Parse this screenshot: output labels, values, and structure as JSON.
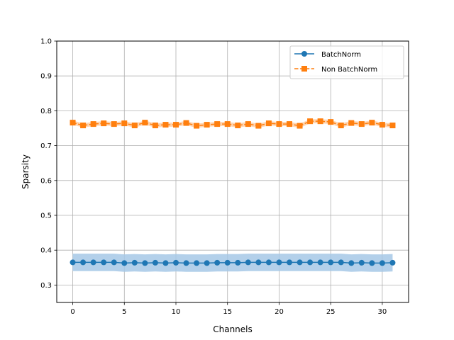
{
  "chart_data": {
    "type": "line",
    "title": "",
    "xlabel": "Channels",
    "ylabel": "Sparsity",
    "xlim": [
      -1.55,
      32.55
    ],
    "ylim": [
      0.25,
      1.0
    ],
    "x_ticks": [
      0,
      5,
      10,
      15,
      20,
      25,
      30
    ],
    "x_tick_labels": [
      "0",
      "5",
      "10",
      "15",
      "20",
      "25",
      "30"
    ],
    "y_ticks": [
      0.3,
      0.4,
      0.5,
      0.6,
      0.7,
      0.8,
      0.9,
      1.0
    ],
    "y_tick_labels": [
      "0.3",
      "0.4",
      "0.5",
      "0.6",
      "0.7",
      "0.8",
      "0.9",
      "1.0"
    ],
    "grid": true,
    "legend_position": "top-right",
    "x": [
      0,
      1,
      2,
      3,
      4,
      5,
      6,
      7,
      8,
      9,
      10,
      11,
      12,
      13,
      14,
      15,
      16,
      17,
      18,
      19,
      20,
      21,
      22,
      23,
      24,
      25,
      26,
      27,
      28,
      29,
      30,
      31
    ],
    "series": [
      {
        "name": "BatchNorm",
        "color": "#1f77b4",
        "band_color": "#a6c8e6",
        "marker": "circle",
        "linestyle": "solid",
        "values": [
          0.365,
          0.365,
          0.365,
          0.365,
          0.365,
          0.363,
          0.364,
          0.363,
          0.364,
          0.363,
          0.364,
          0.363,
          0.363,
          0.363,
          0.364,
          0.364,
          0.364,
          0.365,
          0.365,
          0.365,
          0.365,
          0.365,
          0.365,
          0.365,
          0.365,
          0.365,
          0.365,
          0.363,
          0.364,
          0.363,
          0.363,
          0.364
        ],
        "band": 0.025
      },
      {
        "name": "Non BatchNorm",
        "color": "#ff7f0e",
        "band_color": "#ffcfa6",
        "marker": "square",
        "linestyle": "dashed",
        "values": [
          0.766,
          0.758,
          0.762,
          0.764,
          0.762,
          0.764,
          0.758,
          0.766,
          0.758,
          0.76,
          0.76,
          0.765,
          0.757,
          0.76,
          0.762,
          0.762,
          0.758,
          0.762,
          0.757,
          0.764,
          0.762,
          0.762,
          0.757,
          0.77,
          0.77,
          0.768,
          0.758,
          0.765,
          0.762,
          0.766,
          0.76,
          0.758
        ],
        "band": 0.006
      }
    ]
  }
}
